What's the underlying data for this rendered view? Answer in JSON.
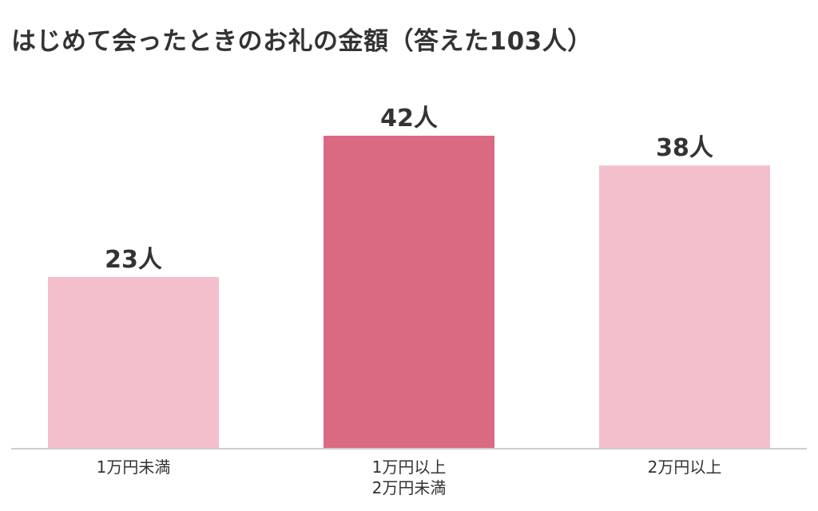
{
  "chart_data": {
    "type": "bar",
    "title": "はじめて会ったときのお礼の金額（答えた103人）",
    "categories": [
      "1万円未満",
      "1万円以上\n2万円未満",
      "2万円以上"
    ],
    "values": [
      23,
      42,
      38
    ],
    "value_labels": [
      "23人",
      "42人",
      "38人"
    ],
    "bar_colors": [
      "#f4bfcc",
      "#d96a82",
      "#f4bfcc"
    ],
    "baseline_color": "#cccccc",
    "ylim": [
      0,
      42
    ],
    "grid": false,
    "legend": "none"
  }
}
